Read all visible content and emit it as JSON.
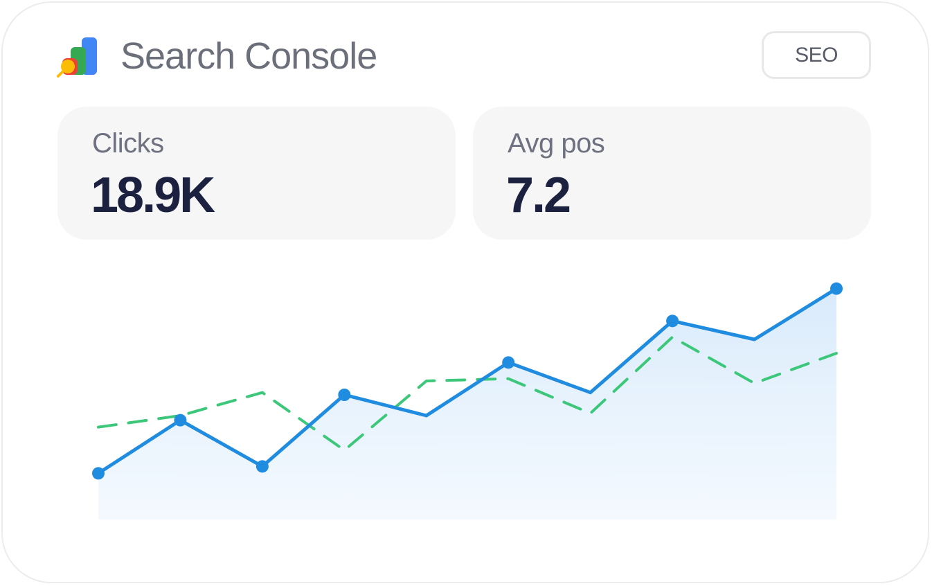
{
  "header": {
    "title": "Search Console",
    "tag_label": "SEO",
    "logo_icon": "search-console-logo-icon"
  },
  "stats": [
    {
      "label": "Clicks",
      "value": "18.9K"
    },
    {
      "label": "Avg pos",
      "value": "7.2"
    }
  ],
  "colors": {
    "primary_line": "#1f8ce0",
    "secondary_line": "#3cc77a",
    "area_fill": "#dcecfb",
    "title_text": "#6b6f7a",
    "value_text": "#1c2140"
  },
  "chart_data": {
    "type": "line",
    "x": [
      1,
      2,
      3,
      4,
      5,
      6,
      7,
      8,
      9,
      10
    ],
    "series": [
      {
        "style": "solid-area",
        "values": [
          0,
          23,
          3,
          34,
          25,
          48,
          35,
          66,
          58,
          80
        ],
        "markers": [
          true,
          true,
          true,
          true,
          false,
          true,
          false,
          true,
          false,
          true
        ]
      },
      {
        "style": "dashed",
        "values": [
          20,
          25,
          35,
          10,
          40,
          41,
          26,
          59,
          39,
          52
        ]
      }
    ],
    "ylim": [
      -20,
      100
    ],
    "grid": false,
    "axes_visible": false
  }
}
